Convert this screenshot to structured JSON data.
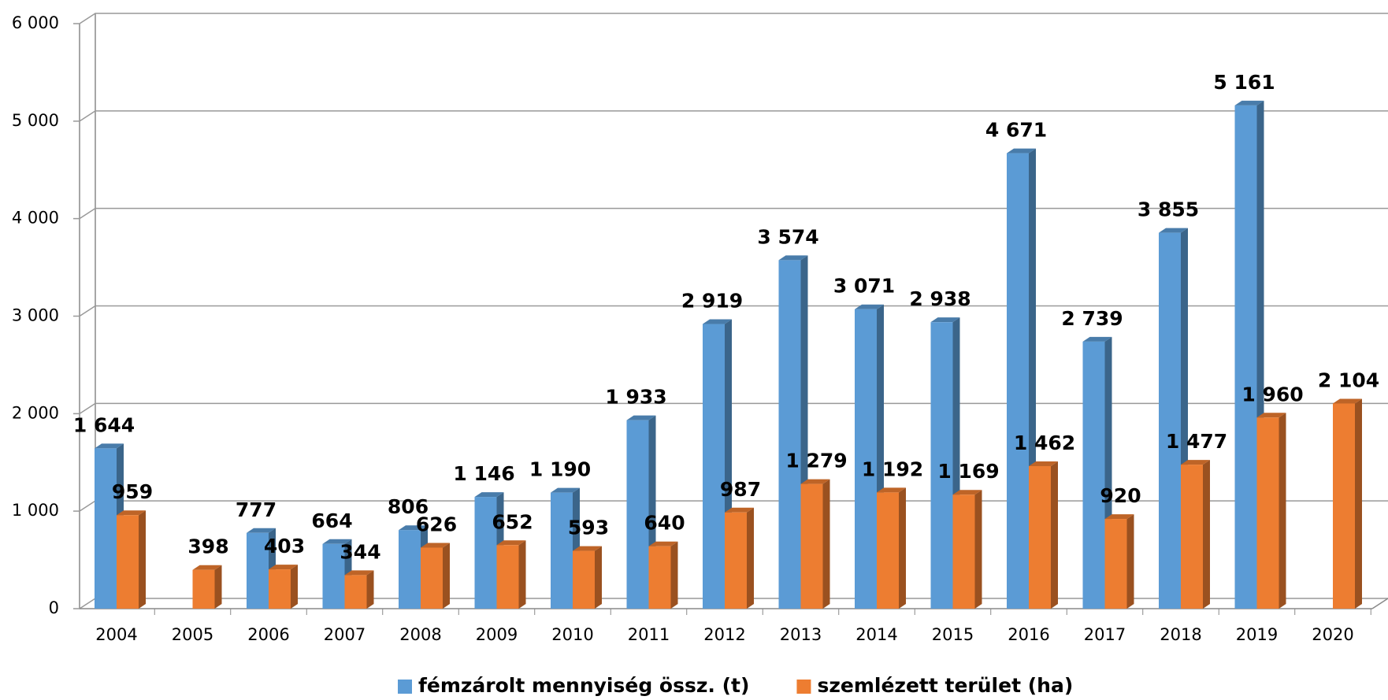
{
  "chart_data": {
    "type": "bar3d",
    "categories": [
      "2004",
      "2005",
      "2006",
      "2007",
      "2008",
      "2009",
      "2010",
      "2011",
      "2012",
      "2013",
      "2014",
      "2015",
      "2016",
      "2017",
      "2018",
      "2019",
      "2020"
    ],
    "series": [
      {
        "name": "fémzárolt mennyiség össz. (t)",
        "color": "#5b9bd5",
        "values": [
          1644,
          null,
          777,
          664,
          806,
          1146,
          1190,
          1933,
          2919,
          3574,
          3071,
          2938,
          4671,
          2739,
          3855,
          5161,
          null
        ],
        "value_labels": [
          "1 644",
          null,
          "777",
          "664",
          "806",
          "1 146",
          "1 190",
          "1 933",
          "2 919",
          "3 574",
          "3 071",
          "2 938",
          "4 671",
          "2 739",
          "3 855",
          "5 161",
          null
        ]
      },
      {
        "name": "szemlézett terület (ha)",
        "color": "#ed7d31",
        "values": [
          959,
          398,
          403,
          344,
          626,
          652,
          593,
          640,
          987,
          1279,
          1192,
          1169,
          1462,
          920,
          1477,
          1960,
          2104
        ],
        "value_labels": [
          "959",
          "398",
          "403",
          "344",
          "626",
          "652",
          "593",
          "640",
          "987",
          "1 279",
          "1 192",
          "1 169",
          "1 462",
          "920",
          "1 477",
          "1 960",
          "2 104"
        ]
      }
    ],
    "ylim": [
      0,
      6000
    ],
    "yticks": [
      0,
      {
        "value": 1000,
        "label": "1 000"
      },
      {
        "value": 2000,
        "label": "2 000"
      },
      {
        "value": 3000,
        "label": "3 000"
      },
      {
        "value": 4000,
        "label": "4 000"
      },
      {
        "value": 5000,
        "label": "5 000"
      },
      {
        "value": 6000,
        "label": "6 000"
      }
    ],
    "grid": true,
    "legend": "bottom"
  }
}
